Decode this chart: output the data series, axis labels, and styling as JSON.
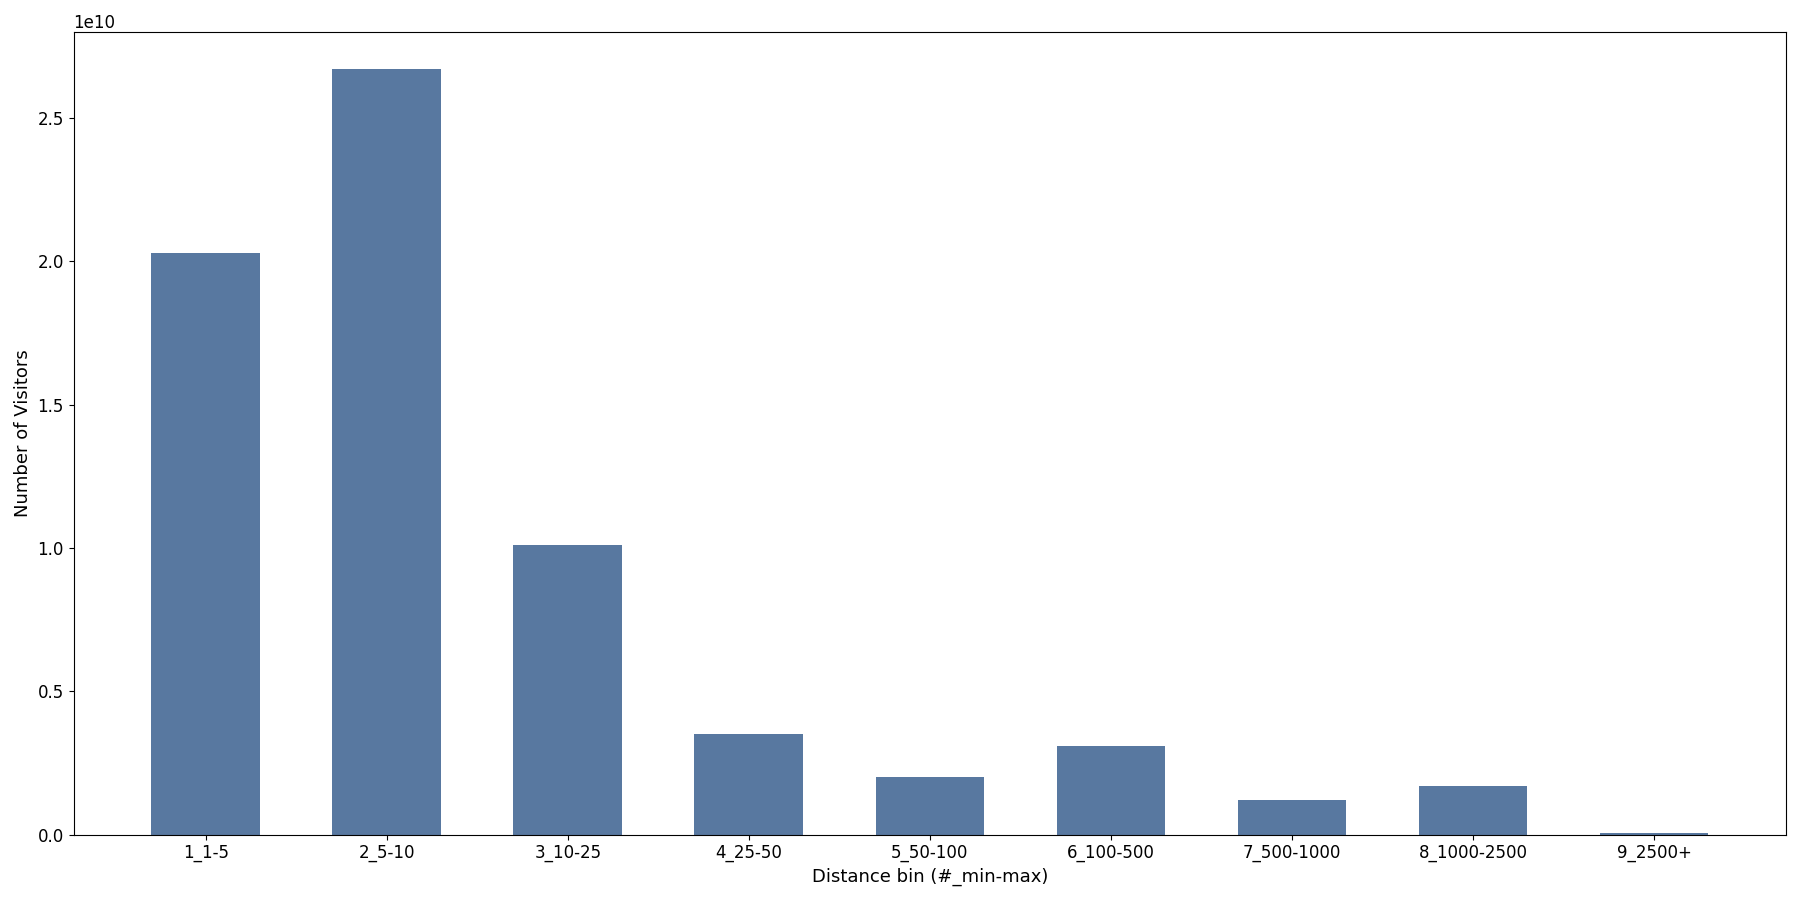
{
  "categories": [
    "1_1-5",
    "2_5-10",
    "3_10-25",
    "4_25-50",
    "5_50-100",
    "6_100-500",
    "7_500-1000",
    "8_1000-2500",
    "9_2500+"
  ],
  "values": [
    20300000000.0,
    26700000000.0,
    10100000000.0,
    3500000000.0,
    2000000000.0,
    3100000000.0,
    1200000000.0,
    1700000000.0,
    50000000.0
  ],
  "bar_color": "#5878a0",
  "xlabel": "Distance bin (#_min-max)",
  "ylabel": "Number of Visitors",
  "ylim": [
    0,
    28000000000.0
  ],
  "figsize": [
    18.0,
    9.0
  ],
  "dpi": 100
}
